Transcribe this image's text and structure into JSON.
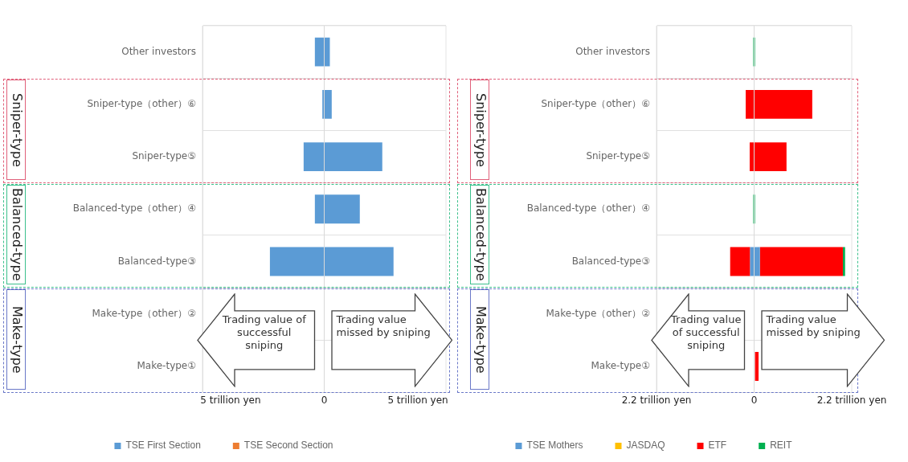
{
  "chart_data": [
    {
      "type": "bar",
      "orientation": "horizontal",
      "categories": [
        "Other investors",
        "Sniper-type（other）⑥",
        "Sniper-type⑤",
        "Balanced-type（other）④",
        "Balanced-type③",
        "Make-type（other）②",
        "Make-type①"
      ],
      "series": [
        {
          "name": "TSE First Section",
          "color": "#5b9bd5",
          "base": [
            -0.5,
            -0.1,
            -1.1,
            -0.5,
            -2.9,
            null,
            null
          ],
          "values": [
            0.8,
            0.5,
            4.2,
            2.4,
            6.6,
            null,
            null
          ]
        },
        {
          "name": "TSE Second Section",
          "color": "#ed7d31",
          "base": [
            null,
            null,
            null,
            null,
            null,
            null,
            null
          ],
          "values": [
            null,
            null,
            null,
            null,
            null,
            null,
            null
          ]
        }
      ],
      "xlim": [
        -6.5,
        6.5
      ],
      "xticks": [
        {
          "value": -5,
          "label": "5 trillion yen"
        },
        0,
        {
          "value": 5,
          "label": "5 trillion yen"
        }
      ],
      "grid": "y",
      "legend": "bottom",
      "ref_lines": [
        {
          "axis": "x",
          "value": 0,
          "color": "#d9d9d9"
        }
      ],
      "annotations": [
        "Sniper-type",
        "Balanced-type",
        "Make-type",
        "Trading value of successful sniping",
        "Trading value missed by sniping"
      ]
    },
    {
      "type": "bar",
      "orientation": "horizontal",
      "categories": [
        "Other investors",
        "Sniper-type（other）⑥",
        "Sniper-type⑤",
        "Balanced-type（other）④",
        "Balanced-type③",
        "Make-type（other）②",
        "Make-type①"
      ],
      "series": [
        {
          "name": "TSE Mothers",
          "color": "#5b9bd5",
          "base": [
            null,
            null,
            null,
            null,
            -0.09,
            null,
            null
          ],
          "values": [
            null,
            null,
            null,
            null,
            0.22,
            null,
            null
          ]
        },
        {
          "name": "JASDAQ",
          "color": "#ffc000",
          "base": [
            null,
            null,
            null,
            null,
            null,
            null,
            null
          ],
          "values": [
            null,
            null,
            null,
            null,
            null,
            null,
            null
          ]
        },
        {
          "name": "ETF",
          "color": "#ff0000",
          "base": [
            null,
            -0.19,
            -0.1,
            null,
            0.13,
            null,
            0.02
          ],
          "values": [
            null,
            1.5,
            0.83,
            null,
            1.87,
            null,
            0.08
          ]
        },
        {
          "color": "#ff0000",
          "base": [
            null,
            null,
            null,
            null,
            -0.54,
            null,
            null
          ],
          "values": [
            null,
            null,
            null,
            null,
            0.45,
            null,
            null
          ]
        },
        {
          "name": "REIT",
          "color": "#00b050",
          "base": [
            -0.02,
            null,
            null,
            -0.02,
            2.0,
            null,
            null
          ],
          "values": [
            0.04,
            null,
            null,
            0.04,
            0.05,
            null,
            null
          ]
        }
      ],
      "xlim": [
        -2.2,
        2.2
      ],
      "xticks": [
        {
          "value": -2.2,
          "label": "2.2 trillion yen"
        },
        0,
        {
          "value": 2.2,
          "label": "2.2 trillion yen"
        }
      ],
      "grid": "y",
      "legend": "bottom",
      "ref_lines": [
        {
          "axis": "x",
          "value": 0,
          "color": "#d9d9d9"
        }
      ],
      "annotations": [
        "Sniper-type",
        "Balanced-type",
        "Make-type",
        "Trading value of successful sniping",
        "Trading value missed by sniping"
      ]
    }
  ]
}
